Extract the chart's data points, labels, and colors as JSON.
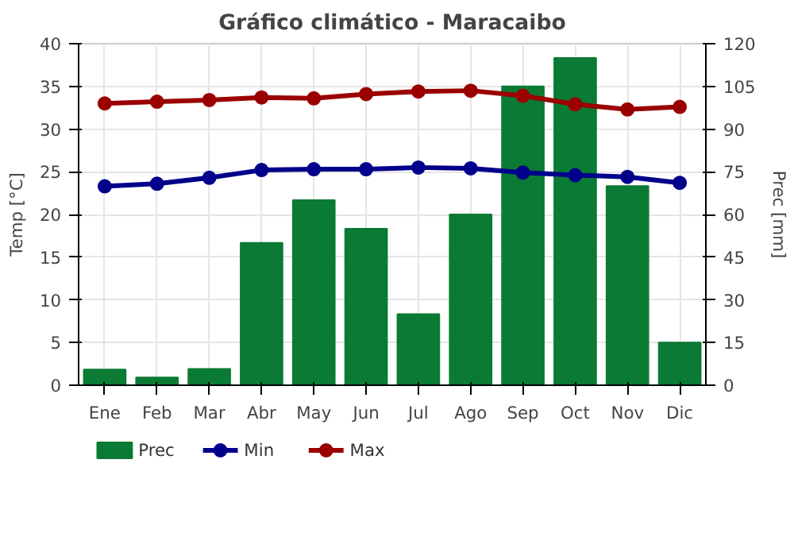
{
  "chart_data": {
    "type": "bar",
    "title": "Gráfico climático - Maracaibo",
    "ylabel": "Temp [°C]",
    "y2label": "Prec [mm]",
    "categories": [
      "Ene",
      "Feb",
      "Mar",
      "Abr",
      "May",
      "Jun",
      "Jul",
      "Ago",
      "Sep",
      "Oct",
      "Nov",
      "Dic"
    ],
    "series": [
      {
        "name": "Prec",
        "axis": "y2",
        "color": "#0b7a34",
        "values": [
          5.5,
          2.7,
          5.7,
          50,
          65,
          55,
          25,
          60,
          105,
          115,
          70,
          15
        ]
      },
      {
        "name": "Min",
        "type": "line",
        "color": "#00008b",
        "values": [
          23.3,
          23.6,
          24.3,
          25.2,
          25.3,
          25.3,
          25.5,
          25.4,
          24.9,
          24.6,
          24.4,
          23.7
        ]
      },
      {
        "name": "Max",
        "type": "line",
        "color": "#9b0000",
        "values": [
          33.0,
          33.2,
          33.4,
          33.7,
          33.6,
          34.1,
          34.4,
          34.5,
          33.9,
          32.9,
          32.3,
          32.6
        ]
      }
    ],
    "ylim": [
      0,
      40
    ],
    "yticks": [
      0,
      5,
      10,
      15,
      20,
      25,
      30,
      35,
      40
    ],
    "y2lim": [
      0,
      120
    ],
    "y2ticks": [
      0,
      15,
      30,
      45,
      60,
      75,
      90,
      105,
      120
    ],
    "grid": true,
    "legend": "bottom",
    "marker": "circle",
    "line_style": "solid"
  }
}
